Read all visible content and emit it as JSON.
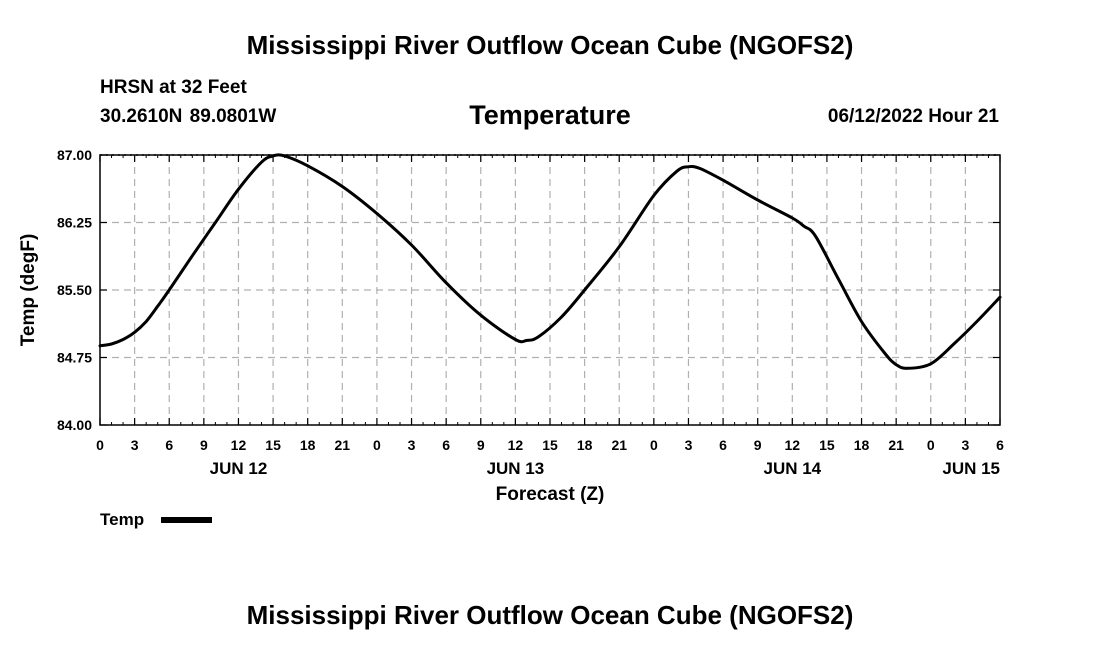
{
  "page": {
    "title": "Mississippi River Outflow Ocean Cube (NGOFS2)",
    "footer_title": "Mississippi River Outflow Ocean Cube (NGOFS2)",
    "station": "HRSN at 32 Feet",
    "coords": "30.2610N  89.0801W",
    "timestamp": "06/12/2022 Hour 21"
  },
  "chart_data": {
    "type": "line",
    "title": "Temperature",
    "xlabel": "Forecast (Z)",
    "ylabel": "Temp (degF)",
    "xlim": [
      0,
      78
    ],
    "ylim": [
      84.0,
      87.0
    ],
    "yticks": [
      "84.00",
      "84.75",
      "85.50",
      "86.25",
      "87.00"
    ],
    "ytick_values": [
      84.0,
      84.75,
      85.5,
      86.25,
      87.0
    ],
    "xticks": [
      "0",
      "3",
      "6",
      "9",
      "12",
      "15",
      "18",
      "21",
      "0",
      "3",
      "6",
      "9",
      "12",
      "15",
      "18",
      "21",
      "0",
      "3",
      "6",
      "9",
      "12",
      "15",
      "18",
      "21",
      "0",
      "3",
      "6"
    ],
    "day_labels": [
      {
        "label": "JUN 12",
        "hour": 12
      },
      {
        "label": "JUN 13",
        "hour": 36
      },
      {
        "label": "JUN 14",
        "hour": 60
      },
      {
        "label": "JUN 15",
        "hour": 78
      }
    ],
    "grid": true,
    "legend": "bottom-left",
    "series": [
      {
        "name": "Temp",
        "x": [
          0,
          1,
          2,
          3,
          4,
          5,
          6,
          8,
          10,
          12,
          14,
          15,
          16,
          18,
          21,
          24,
          27,
          30,
          33,
          36,
          37,
          38,
          40,
          42,
          45,
          48,
          50,
          51,
          52,
          54,
          57,
          60,
          61,
          62,
          64,
          66,
          68,
          69,
          70,
          72,
          74,
          76,
          78
        ],
        "y": [
          84.88,
          84.9,
          84.95,
          85.03,
          85.15,
          85.32,
          85.5,
          85.88,
          86.25,
          86.62,
          86.92,
          86.99,
          86.99,
          86.88,
          86.65,
          86.35,
          86.0,
          85.58,
          85.22,
          84.95,
          84.94,
          84.98,
          85.2,
          85.5,
          85.98,
          86.55,
          86.82,
          86.87,
          86.85,
          86.72,
          86.5,
          86.3,
          86.21,
          86.1,
          85.62,
          85.15,
          84.8,
          84.67,
          84.63,
          84.68,
          84.9,
          85.15,
          85.42
        ]
      }
    ]
  }
}
